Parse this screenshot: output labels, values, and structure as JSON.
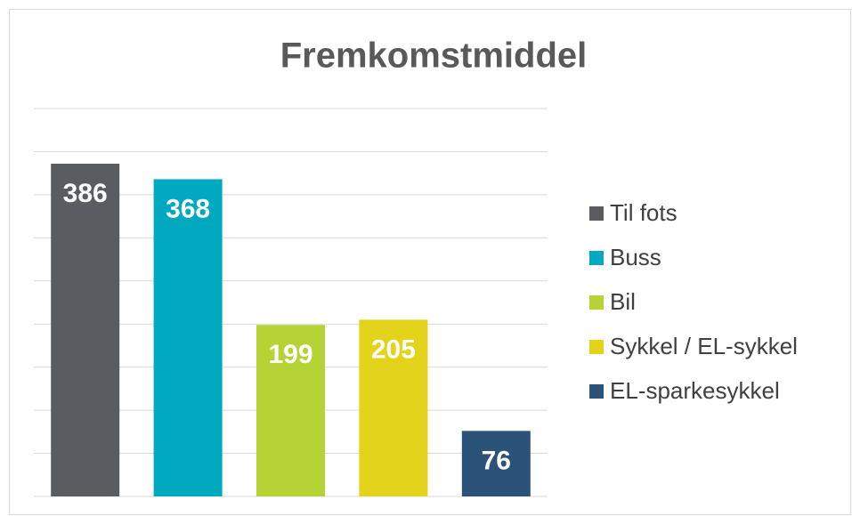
{
  "chart_data": {
    "type": "bar",
    "title": "Fremkomstmiddel",
    "series": [
      {
        "name": "Til fots",
        "color": "#595d61",
        "values": [
          386
        ]
      },
      {
        "name": "Buss",
        "color": "#00a9bf",
        "values": [
          368
        ]
      },
      {
        "name": "Bil",
        "color": "#b5d334",
        "values": [
          199
        ]
      },
      {
        "name": "Sykkel / EL-sykkel",
        "color": "#e3d31a",
        "values": [
          205
        ]
      },
      {
        "name": "EL-sparkesykkel",
        "color": "#2b5278",
        "values": [
          76
        ]
      }
    ],
    "ylim": [
      0,
      450
    ],
    "yticks": [
      0,
      50,
      100,
      150,
      200,
      250,
      300,
      350,
      400,
      450
    ],
    "grid": true,
    "legend": "right"
  }
}
